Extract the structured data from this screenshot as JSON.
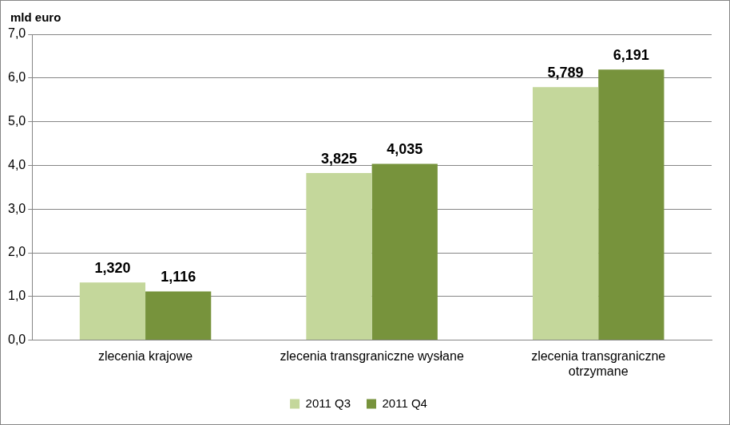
{
  "chart_data": {
    "type": "bar",
    "ylabel": "mld euro",
    "categories": [
      "zlecenia krajowe",
      "zlecenia transgraniczne wysłane",
      "zlecenia transgraniczne otrzymane"
    ],
    "series": [
      {
        "name": "2011 Q3",
        "color": "#c4d79b",
        "values": [
          1.32,
          3.825,
          5.789
        ],
        "value_labels": [
          "1,320",
          "3,825",
          "5,789"
        ]
      },
      {
        "name": "2011 Q4",
        "color": "#77933c",
        "values": [
          1.116,
          4.035,
          6.191
        ],
        "value_labels": [
          "1,116",
          "4,035",
          "6,191"
        ]
      }
    ],
    "ylim": [
      0,
      7
    ],
    "yticks": [
      {
        "value": 0,
        "label": "0,0"
      },
      {
        "value": 1,
        "label": "1,0"
      },
      {
        "value": 2,
        "label": "2,0"
      },
      {
        "value": 3,
        "label": "3,0"
      },
      {
        "value": 4,
        "label": "4,0"
      },
      {
        "value": 5,
        "label": "5,0"
      },
      {
        "value": 6,
        "label": "6,0"
      },
      {
        "value": 7,
        "label": "7,0"
      }
    ],
    "grid": true,
    "legend": "bottom",
    "data_labels": true
  }
}
